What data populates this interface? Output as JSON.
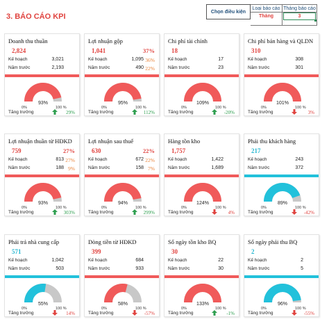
{
  "title": "3. BÁO CÁO KPI",
  "filter": {
    "label": "Chọn điều kiện",
    "col1_header": "Loại báo cáo",
    "col1_value": "Tháng",
    "col2_header": "Tháng báo cáo",
    "col2_value": "3"
  },
  "labels": {
    "plan": "Kế hoạch",
    "last_year": "Năm trước",
    "growth": "Tăng trưởng",
    "zero": "0%",
    "hundred": "100 %"
  },
  "colors": {
    "red": "#f05a5a",
    "cyan": "#22c1db",
    "grey": "#c8c8c8"
  },
  "cards": [
    {
      "name": "Doanh thu thuần",
      "value": "2,824",
      "value_color": "red",
      "plan": "3,021",
      "plan_pct": "",
      "last": "2,193",
      "last_pct": "",
      "gauge_pct": 93,
      "gauge_label": "93%",
      "theme": "red",
      "growth": "29%",
      "direction": "up"
    },
    {
      "name": "Lợi nhuận gộp",
      "value": "1,041",
      "value_color": "red",
      "plan": "1,095",
      "plan_pct": "36%",
      "last": "490",
      "last_pct": "22%",
      "pct": "37%",
      "gauge_pct": 95,
      "gauge_label": "95%",
      "theme": "red",
      "growth": "112%",
      "direction": "up"
    },
    {
      "name": "Chi phí tài chính",
      "value": "18",
      "value_color": "red",
      "plan": "17",
      "plan_pct": "",
      "last": "23",
      "last_pct": "",
      "gauge_pct": 100,
      "gauge_label": "109%",
      "theme": "red",
      "growth": "-20%",
      "direction": "up"
    },
    {
      "name": "Chi phí bán hàng và QLDN",
      "value": "310",
      "value_color": "red",
      "plan": "308",
      "plan_pct": "",
      "last": "301",
      "last_pct": "",
      "gauge_pct": 100,
      "gauge_label": "101%",
      "theme": "red",
      "growth": "3%",
      "direction": "down"
    },
    {
      "name": "Lợi nhuận thuần từ HĐKD",
      "value": "759",
      "value_color": "red",
      "plan": "813",
      "plan_pct": "27%",
      "last": "188",
      "last_pct": "9%",
      "pct": "27%",
      "gauge_pct": 93,
      "gauge_label": "93%",
      "theme": "red",
      "growth": "303%",
      "direction": "up"
    },
    {
      "name": "Lợi nhuận sau thuế",
      "value": "630",
      "value_color": "red",
      "plan": "672",
      "plan_pct": "22%",
      "last": "158",
      "last_pct": "7%",
      "pct": "22%",
      "gauge_pct": 94,
      "gauge_label": "94%",
      "theme": "red",
      "growth": "299%",
      "direction": "up"
    },
    {
      "name": "Hàng tồn kho",
      "value": "1,757",
      "value_color": "red",
      "plan": "1,422",
      "plan_pct": "",
      "last": "1,689",
      "last_pct": "",
      "gauge_pct": 100,
      "gauge_label": "124%",
      "theme": "red",
      "growth": "4%",
      "direction": "down"
    },
    {
      "name": "Phải thu khách hàng",
      "value": "217",
      "value_color": "cyan",
      "plan": "243",
      "plan_pct": "",
      "last": "372",
      "last_pct": "",
      "gauge_pct": 89,
      "gauge_label": "89%",
      "theme": "cyan",
      "growth": "-42%",
      "direction": "down"
    },
    {
      "name": "Phải trả nhà cung cấp",
      "value": "571",
      "value_color": "cyan",
      "plan": "1,042",
      "plan_pct": "",
      "last": "503",
      "last_pct": "",
      "gauge_pct": 55,
      "gauge_label": "55%",
      "theme": "cyan",
      "growth": "14%",
      "direction": "down"
    },
    {
      "name": "Dòng tiền từ HĐKD",
      "value": "399",
      "value_color": "red",
      "plan": "684",
      "plan_pct": "",
      "last": "933",
      "last_pct": "",
      "gauge_pct": 58,
      "gauge_label": "58%",
      "theme": "red",
      "growth": "-57%",
      "direction": "down"
    },
    {
      "name": "Số ngày tồn kho BQ",
      "value": "30",
      "value_color": "red",
      "plan": "22",
      "plan_pct": "",
      "last": "30",
      "last_pct": "",
      "gauge_pct": 100,
      "gauge_label": "133%",
      "theme": "red",
      "growth": "-1%",
      "direction": "up"
    },
    {
      "name": "Số ngày phải thu BQ",
      "value": "2",
      "value_color": "cyan",
      "plan": "2",
      "plan_pct": "",
      "last": "5",
      "last_pct": "",
      "gauge_pct": 96,
      "gauge_label": "96%",
      "theme": "cyan",
      "growth": "-55%",
      "direction": "down"
    }
  ]
}
